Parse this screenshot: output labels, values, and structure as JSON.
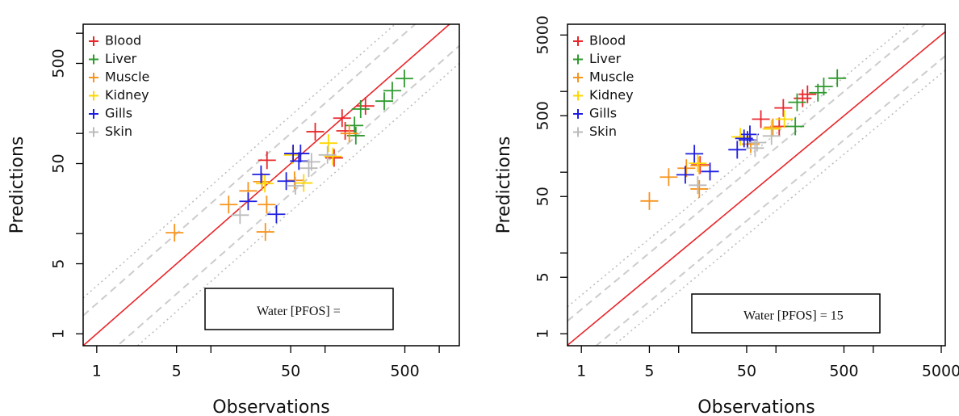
{
  "chart_data": [
    {
      "type": "scatter",
      "xlabel": "Observations",
      "ylabel": "Predictions",
      "xlog": true,
      "ylog": true,
      "xlim": [
        0.76,
        1500
      ],
      "ylim": [
        0.76,
        1230
      ],
      "xticks": [
        1,
        5,
        50,
        500
      ],
      "yticks": [
        1,
        5,
        50,
        500
      ],
      "xminorticks": [
        10,
        100,
        1000
      ],
      "yminorticks": [
        10,
        100,
        1000
      ],
      "identity_line_color": "#e8262a",
      "fold_bands": {
        "dashed": 2,
        "dotted": 3
      },
      "legend": "top-left",
      "annotation": "Water [PFOS] =",
      "series": [
        {
          "name": "Blood",
          "color": "#e8262a",
          "x": [
            31,
            82,
            141,
            226,
            120,
            150
          ],
          "values": [
            54,
            104,
            142,
            188,
            57,
            106
          ]
        },
        {
          "name": "Liver",
          "color": "#2e9a2e",
          "x": [
            186,
            181,
            205,
            330,
            388,
            495
          ],
          "values": [
            95,
            120,
            175,
            210,
            267,
            353
          ]
        },
        {
          "name": "Muscle",
          "color": "#f7941d",
          "x": [
            4.8,
            14.3,
            21.2,
            30.8,
            30,
            28,
            54,
            163
          ],
          "values": [
            10.2,
            19.5,
            26.7,
            19.5,
            10.4,
            33,
            34,
            100
          ]
        },
        {
          "name": "Kidney",
          "color": "#ffd700",
          "x": [
            29.7,
            52,
            65,
            107,
            117
          ],
          "values": [
            31.6,
            61,
            32,
            80,
            59
          ]
        },
        {
          "name": "Gills",
          "color": "#1f1fe0",
          "x": [
            27.5,
            21.2,
            37.5,
            45.7,
            52.5,
            61,
            59
          ],
          "values": [
            39,
            21,
            15.6,
            33.4,
            63,
            63,
            53
          ]
        },
        {
          "name": "Skin",
          "color": "#bbbbbb",
          "x": [
            18,
            72,
            76,
            105,
            55
          ],
          "values": [
            15.3,
            45,
            52,
            61,
            30
          ]
        }
      ]
    },
    {
      "type": "scatter",
      "xlabel": "Observations",
      "ylabel": "Predictions",
      "xlog": true,
      "ylog": true,
      "xlim": [
        0.72,
        5500
      ],
      "ylim": [
        0.71,
        6800
      ],
      "xticks": [
        1,
        5,
        50,
        500,
        5000
      ],
      "yticks": [
        1,
        5,
        50,
        500,
        5000
      ],
      "xminorticks": [
        10,
        100,
        1000
      ],
      "yminorticks": [
        10,
        100,
        1000
      ],
      "identity_line_color": "#e8262a",
      "fold_bands": {
        "dashed": 2,
        "dotted": 3
      },
      "legend": "top-left",
      "annotation": "Water [PFOS] = 15",
      "series": [
        {
          "name": "Blood",
          "color": "#e8262a",
          "x": [
            16.6,
            70,
            119,
            108,
            188,
            211
          ],
          "values": [
            123,
            454,
            625,
            369,
            823,
            923
          ]
        },
        {
          "name": "Liver",
          "color": "#2e9a2e",
          "x": [
            158,
            165,
            270,
            310,
            427
          ],
          "values": [
            369,
            735,
            966,
            1150,
            1460
          ]
        },
        {
          "name": "Muscle",
          "color": "#f7941d",
          "x": [
            5.0,
            7.9,
            12,
            16.3,
            16.3,
            55,
            93
          ],
          "values": [
            44,
            87,
            112,
            62,
            121,
            223,
            360
          ]
        },
        {
          "name": "Kidney",
          "color": "#ffd700",
          "x": [
            15.7,
            43,
            90,
            122
          ],
          "values": [
            129,
            274,
            344,
            454
          ]
        },
        {
          "name": "Gills",
          "color": "#1f1fe0",
          "x": [
            11.7,
            14.5,
            21,
            40,
            47,
            54,
            51
          ],
          "values": [
            93,
            169,
            102,
            190,
            262,
            294,
            251
          ]
        },
        {
          "name": "Skin",
          "color": "#bbbbbb",
          "x": [
            15.7,
            61,
            90,
            64
          ],
          "values": [
            69,
            199,
            281,
            233
          ]
        }
      ]
    }
  ]
}
